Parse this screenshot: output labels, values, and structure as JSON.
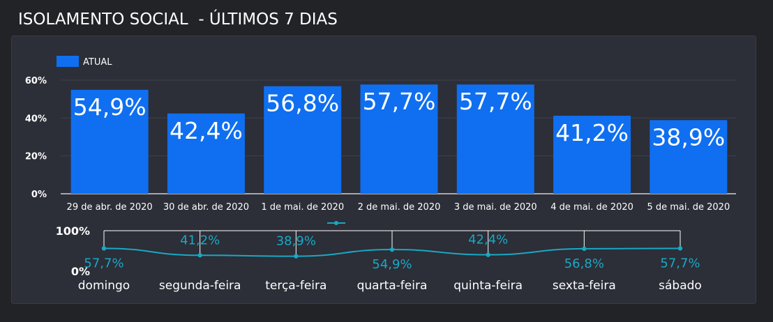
{
  "title": "ISOLAMENTO SOCIAL  - ÚLTIMOS 7 DIAS",
  "colors": {
    "bar": "#0f6ff0",
    "line": "#18a9c4",
    "grid": "#3e404a",
    "axis": "#cfd1d8",
    "panel": "#2c2e38",
    "background": "#222327"
  },
  "chart_data": [
    {
      "type": "bar",
      "legend": {
        "label": "ATUAL",
        "position": "top-left"
      },
      "categories": [
        "29 de abr. de 2020",
        "30 de abr. de 2020",
        "1 de mai. de 2020",
        "2 de mai. de 2020",
        "3 de mai. de 2020",
        "4 de mai. de 2020",
        "5 de mai. de 2020"
      ],
      "series": [
        {
          "name": "ATUAL",
          "values": [
            54.9,
            42.4,
            56.8,
            57.7,
            57.7,
            41.2,
            38.9
          ]
        }
      ],
      "value_labels": [
        "54,9%",
        "42,4%",
        "56,8%",
        "57,7%",
        "57,7%",
        "41,2%",
        "38,9%"
      ],
      "ylim": [
        0,
        60
      ],
      "yticks": [
        0,
        20,
        40,
        60
      ],
      "ytick_labels": [
        "0%",
        "20%",
        "40%",
        "60%"
      ],
      "grid": true
    },
    {
      "type": "line",
      "categories": [
        "domingo",
        "segunda-feira",
        "terça-feira",
        "quarta-feira",
        "quinta-feira",
        "sexta-feira",
        "sábado"
      ],
      "series": [
        {
          "values": [
            57.7,
            41.2,
            38.9,
            54.9,
            42.4,
            56.8,
            57.7
          ]
        }
      ],
      "value_labels": [
        "57,7%",
        "41,2%",
        "38,9%",
        "54,9%",
        "42,4%",
        "56,8%",
        "57,7%"
      ],
      "ylim": [
        0,
        100
      ],
      "ytick_labels": [
        "0%",
        "100%"
      ]
    }
  ]
}
